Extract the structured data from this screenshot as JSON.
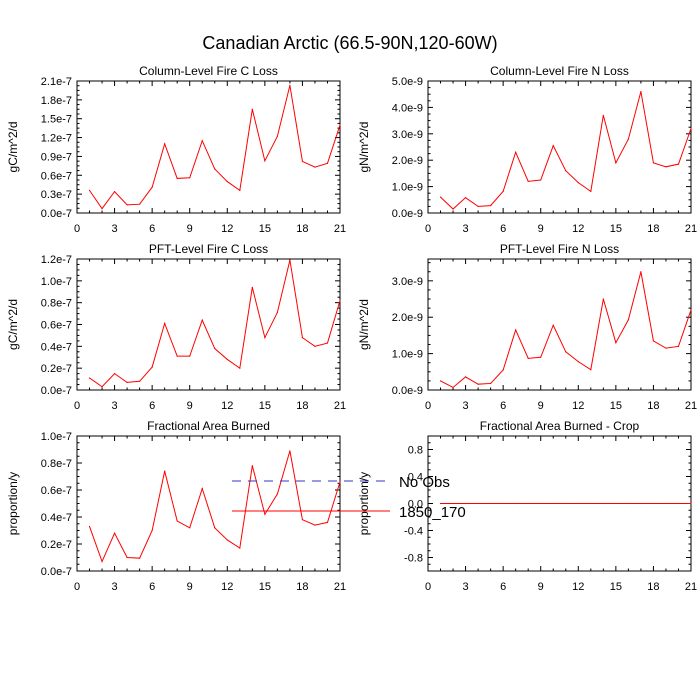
{
  "figure": {
    "title": "Canadian Arctic (66.5-90N,120-60W)",
    "legend": [
      {
        "label": "No Obs",
        "color": "#3333cc",
        "style": "dashed"
      },
      {
        "label": "1850_170",
        "color": "#ff0000",
        "style": "solid"
      }
    ]
  },
  "chart_data": [
    {
      "type": "line",
      "title": "Column-Level Fire C Loss",
      "ylabel": "gC/m^2/d",
      "xlim": [
        0,
        21
      ],
      "xticks": [
        0,
        3,
        6,
        9,
        12,
        15,
        18,
        21
      ],
      "ylim": [
        0,
        2.1e-07
      ],
      "yticks": [
        0,
        3e-08,
        6e-08,
        9e-08,
        1.2e-07,
        1.5e-07,
        1.8e-07,
        2.1e-07
      ],
      "yticklabels": [
        "0.0e-7",
        "0.3e-7",
        "0.6e-7",
        "0.9e-7",
        "1.2e-7",
        "1.5e-7",
        "1.8e-7",
        "2.1e-7"
      ],
      "x": [
        1,
        2,
        3,
        4,
        5,
        6,
        7,
        8,
        9,
        10,
        11,
        12,
        13,
        14,
        15,
        16,
        17,
        18,
        19,
        20,
        21
      ],
      "series": [
        {
          "name": "1850_170",
          "color": "#ff0000",
          "values": [
            3.6e-08,
            7e-09,
            3.4e-08,
            1.3e-08,
            1.4e-08,
            4.1e-08,
            1.1e-07,
            5.5e-08,
            5.6e-08,
            1.15e-07,
            7e-08,
            5e-08,
            3.6e-08,
            1.65e-07,
            8.3e-08,
            1.22e-07,
            2.03e-07,
            8.2e-08,
            7.3e-08,
            7.9e-08,
            1.4e-07
          ]
        }
      ]
    },
    {
      "type": "line",
      "title": "Column-Level Fire N Loss",
      "ylabel": "gN/m^2/d",
      "xlim": [
        0,
        21
      ],
      "xticks": [
        0,
        3,
        6,
        9,
        12,
        15,
        18,
        21
      ],
      "ylim": [
        0,
        5e-09
      ],
      "yticks": [
        0,
        1e-09,
        2e-09,
        3e-09,
        4e-09,
        5e-09
      ],
      "yticklabels": [
        "0.0e-9",
        "1.0e-9",
        "2.0e-9",
        "3.0e-9",
        "4.0e-9",
        "5.0e-9"
      ],
      "x": [
        1,
        2,
        3,
        4,
        5,
        6,
        7,
        8,
        9,
        10,
        11,
        12,
        13,
        14,
        15,
        16,
        17,
        18,
        19,
        20,
        21
      ],
      "series": [
        {
          "name": "1850_170",
          "color": "#ff0000",
          "values": [
            6e-10,
            1.5e-10,
            5.8e-10,
            2.5e-10,
            2.8e-10,
            8.2e-10,
            2.3e-09,
            1.2e-09,
            1.25e-09,
            2.55e-09,
            1.6e-09,
            1.15e-09,
            8.2e-10,
            3.7e-09,
            1.9e-09,
            2.8e-09,
            4.6e-09,
            1.9e-09,
            1.75e-09,
            1.85e-09,
            3.2e-09
          ]
        }
      ]
    },
    {
      "type": "line",
      "title": "PFT-Level Fire C Loss",
      "ylabel": "gC/m^2/d",
      "xlim": [
        0,
        21
      ],
      "xticks": [
        0,
        3,
        6,
        9,
        12,
        15,
        18,
        21
      ],
      "ylim": [
        0,
        1.2e-07
      ],
      "yticks": [
        0,
        2e-08,
        4e-08,
        6e-08,
        8e-08,
        1e-07,
        1.2e-07
      ],
      "yticklabels": [
        "0.0e-7",
        "0.2e-7",
        "0.4e-7",
        "0.6e-7",
        "0.8e-7",
        "1.0e-7",
        "1.2e-7"
      ],
      "x": [
        1,
        2,
        3,
        4,
        5,
        6,
        7,
        8,
        9,
        10,
        11,
        12,
        13,
        14,
        15,
        16,
        17,
        18,
        19,
        20,
        21
      ],
      "series": [
        {
          "name": "1850_170",
          "color": "#ff0000",
          "values": [
            1.1e-08,
            3e-09,
            1.5e-08,
            7e-09,
            8e-09,
            2.1e-08,
            6.1e-08,
            3.1e-08,
            3.1e-08,
            6.4e-08,
            3.8e-08,
            2.8e-08,
            2e-08,
            9.4e-08,
            4.8e-08,
            7.1e-08,
            1.19e-07,
            4.8e-08,
            4e-08,
            4.3e-08,
            8.2e-08
          ]
        }
      ]
    },
    {
      "type": "line",
      "title": "PFT-Level Fire N Loss",
      "ylabel": "gN/m^2/d",
      "xlim": [
        0,
        21
      ],
      "xticks": [
        0,
        3,
        6,
        9,
        12,
        15,
        18,
        21
      ],
      "ylim": [
        0,
        3.6e-09
      ],
      "yticks": [
        0,
        1e-09,
        2e-09,
        3e-09
      ],
      "yticklabels": [
        "0.0e-9",
        "1.0e-9",
        "2.0e-9",
        "3.0e-9"
      ],
      "x": [
        1,
        2,
        3,
        4,
        5,
        6,
        7,
        8,
        9,
        10,
        11,
        12,
        13,
        14,
        15,
        16,
        17,
        18,
        19,
        20,
        21
      ],
      "series": [
        {
          "name": "1850_170",
          "color": "#ff0000",
          "values": [
            2.5e-10,
            7e-11,
            3.6e-10,
            1.6e-10,
            1.8e-10,
            5.5e-10,
            1.65e-09,
            8.7e-10,
            9e-10,
            1.78e-09,
            1.05e-09,
            7.8e-10,
            5.6e-10,
            2.5e-09,
            1.3e-09,
            1.93e-09,
            3.25e-09,
            1.35e-09,
            1.15e-09,
            1.2e-09,
            2.2e-09
          ]
        }
      ]
    },
    {
      "type": "line",
      "title": "Fractional Area Burned",
      "ylabel": "proportion/y",
      "xlim": [
        0,
        21
      ],
      "xticks": [
        0,
        3,
        6,
        9,
        12,
        15,
        18,
        21
      ],
      "ylim": [
        0,
        1e-07
      ],
      "yticks": [
        0,
        2e-08,
        4e-08,
        6e-08,
        8e-08,
        1e-07
      ],
      "yticklabels": [
        "0.0e-7",
        "0.2e-7",
        "0.4e-7",
        "0.6e-7",
        "0.8e-7",
        "1.0e-7"
      ],
      "x": [
        1,
        2,
        3,
        4,
        5,
        6,
        7,
        8,
        9,
        10,
        11,
        12,
        13,
        14,
        15,
        16,
        17,
        18,
        19,
        20,
        21
      ],
      "series": [
        {
          "name": "1850_170",
          "color": "#ff0000",
          "values": [
            3.3e-08,
            7e-09,
            2.8e-08,
            1e-08,
            9.5e-09,
            3e-08,
            7.4e-08,
            3.7e-08,
            3.2e-08,
            6.1e-08,
            3.2e-08,
            2.3e-08,
            1.7e-08,
            7.8e-08,
            4.2e-08,
            5.7e-08,
            8.9e-08,
            3.8e-08,
            3.4e-08,
            3.6e-08,
            6.6e-08
          ]
        }
      ]
    },
    {
      "type": "line",
      "title": "Fractional Area Burned - Crop",
      "ylabel": "proportion/y",
      "xlim": [
        0,
        21
      ],
      "xticks": [
        0,
        3,
        6,
        9,
        12,
        15,
        18,
        21
      ],
      "ylim": [
        -1.0,
        1.0
      ],
      "yticks": [
        -0.8,
        -0.4,
        0.0,
        0.4,
        0.8
      ],
      "yticklabels": [
        "-0.8",
        "-0.4",
        "0.0",
        "0.4",
        "0.8"
      ],
      "x": [
        1,
        2,
        3,
        4,
        5,
        6,
        7,
        8,
        9,
        10,
        11,
        12,
        13,
        14,
        15,
        16,
        17,
        18,
        19,
        20,
        21
      ],
      "series": [
        {
          "name": "1850_170",
          "color": "#ff0000",
          "values": [
            0,
            0,
            0,
            0,
            0,
            0,
            0,
            0,
            0,
            0,
            0,
            0,
            0,
            0,
            0,
            0,
            0,
            0,
            0,
            0,
            0
          ]
        }
      ]
    }
  ]
}
